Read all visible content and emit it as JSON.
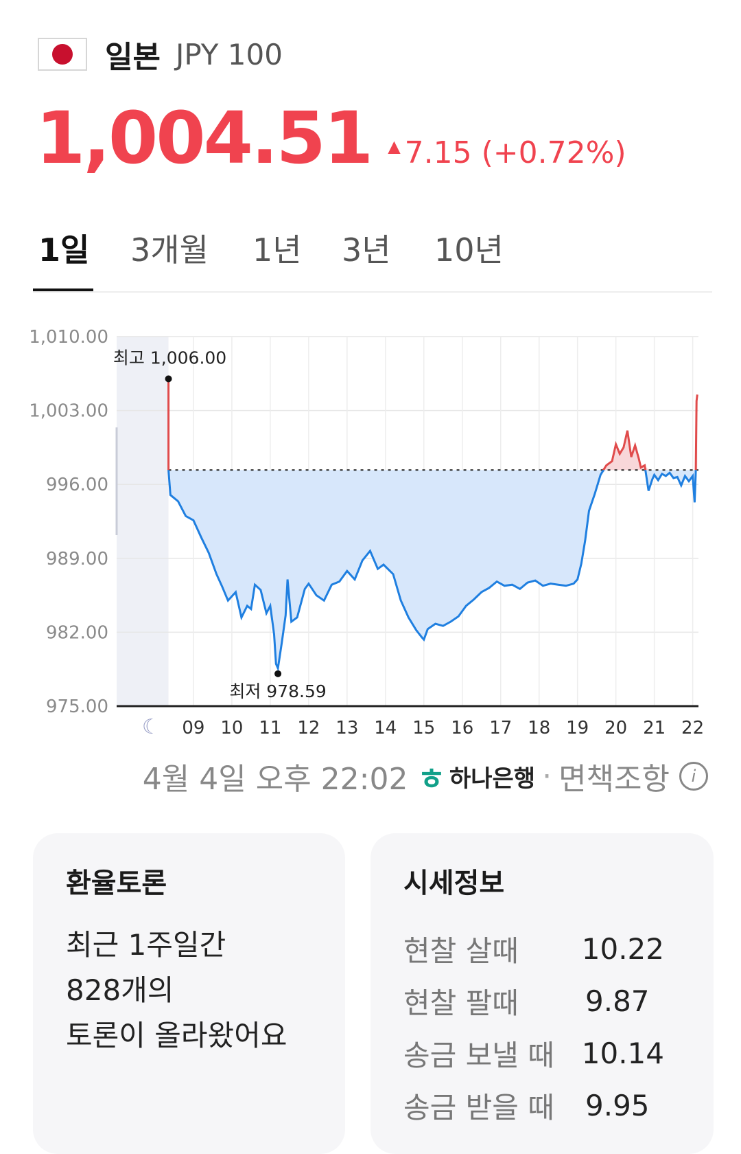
{
  "header": {
    "country": "일본",
    "code": "JPY 100",
    "flag_icon": "japan-flag-icon"
  },
  "quote": {
    "price": "1,004.51",
    "change": "7.15",
    "change_pct": "(+0.72%)",
    "up_color": "#f0434f"
  },
  "tabs": [
    {
      "label": "1일"
    },
    {
      "label": "3개월"
    },
    {
      "label": "1년"
    },
    {
      "label": "3년"
    },
    {
      "label": "10년"
    }
  ],
  "chart_data": {
    "type": "line",
    "ylim": [
      975.0,
      1010.0
    ],
    "y_ticks": [
      "1,010.00",
      "1,003.00",
      "996.00",
      "989.00",
      "982.00",
      "975.00"
    ],
    "y_tick_values": [
      1010,
      1003,
      996,
      989,
      982,
      975
    ],
    "x_ticks": [
      "09",
      "10",
      "11",
      "12",
      "13",
      "14",
      "15",
      "16",
      "17",
      "18",
      "19",
      "20",
      "21",
      "22"
    ],
    "x_night_icon": "moon-icon",
    "baseline": 997.36,
    "high_label": "최고 1,006.00",
    "low_label": "최저 978.59",
    "high": {
      "x": 8.35,
      "y": 1006.0
    },
    "low": {
      "x": 11.2,
      "y": 978.59
    },
    "series": [
      {
        "x": [
          8.35,
          8.35,
          8.4,
          8.6,
          8.8,
          9.0,
          9.2,
          9.4,
          9.6,
          9.75,
          9.9,
          10.1,
          10.25,
          10.4,
          10.5,
          10.6,
          10.75,
          10.9,
          11.0,
          11.1,
          11.15,
          11.2,
          11.3,
          11.4,
          11.45,
          11.55,
          11.7,
          11.9,
          12.0,
          12.2,
          12.4,
          12.6,
          12.8,
          13.0,
          13.2,
          13.4,
          13.6,
          13.8,
          13.95,
          14.2,
          14.4,
          14.6,
          14.8,
          14.95,
          15.0,
          15.1,
          15.3,
          15.5,
          15.7,
          15.9,
          16.1,
          16.3,
          16.5,
          16.7,
          16.9,
          17.1,
          17.3,
          17.5,
          17.7,
          17.9,
          18.1,
          18.3,
          18.5,
          18.7,
          18.9,
          19.0,
          19.1,
          19.2,
          19.3,
          19.45,
          19.6,
          19.75,
          19.9,
          20.0,
          20.1,
          20.2,
          20.3,
          20.4,
          20.5,
          20.6,
          20.65,
          20.75,
          20.85,
          20.95,
          21.0,
          21.1,
          21.2,
          21.3,
          21.4,
          21.5,
          21.6,
          21.7,
          21.8,
          21.9,
          22.0,
          22.05,
          22.08,
          22.1,
          22.12
        ],
        "y": [
          1006.0,
          997.36,
          995.0,
          994.4,
          993.0,
          992.6,
          991.0,
          989.5,
          987.5,
          986.3,
          985.0,
          985.8,
          983.4,
          984.5,
          984.2,
          986.5,
          986.0,
          983.8,
          984.5,
          981.8,
          979.0,
          978.59,
          981.0,
          983.6,
          987.0,
          983.0,
          983.4,
          986.1,
          986.6,
          985.5,
          985.0,
          986.5,
          986.8,
          987.8,
          987.0,
          988.8,
          989.7,
          988.0,
          988.4,
          987.5,
          985.0,
          983.4,
          982.2,
          981.5,
          981.3,
          982.3,
          982.8,
          982.6,
          983.0,
          983.5,
          984.5,
          985.1,
          985.8,
          986.2,
          986.8,
          986.4,
          986.5,
          986.1,
          986.7,
          986.9,
          986.4,
          986.6,
          986.5,
          986.4,
          986.6,
          987.0,
          988.5,
          990.7,
          993.5,
          995.1,
          996.9,
          997.8,
          998.2,
          999.8,
          998.9,
          999.5,
          1001.1,
          998.6,
          999.7,
          998.4,
          997.6,
          997.8,
          995.4,
          996.5,
          996.9,
          996.4,
          997.0,
          996.8,
          997.1,
          996.6,
          996.7,
          995.9,
          996.8,
          996.3,
          996.8,
          994.3,
          997.2,
          1003.9,
          1004.51
        ]
      }
    ]
  },
  "footer": {
    "timestamp": "4월 4일 오후 22:02",
    "bank": "하나은행",
    "sep": "·",
    "disclaimer": "면책조항",
    "info_icon": "info-icon"
  },
  "discussion": {
    "title": "환율토론",
    "lines": [
      "최근 1주일간",
      "828개의",
      "토론이 올라왔어요"
    ]
  },
  "market": {
    "title": "시세정보",
    "rows": [
      {
        "label": "현찰 살때",
        "value": "10.22"
      },
      {
        "label": "현찰 팔때",
        "value": "9.87"
      },
      {
        "label": "송금 보낼 때",
        "value": "10.14"
      },
      {
        "label": "송금 받을 때",
        "value": "9.95"
      }
    ]
  }
}
